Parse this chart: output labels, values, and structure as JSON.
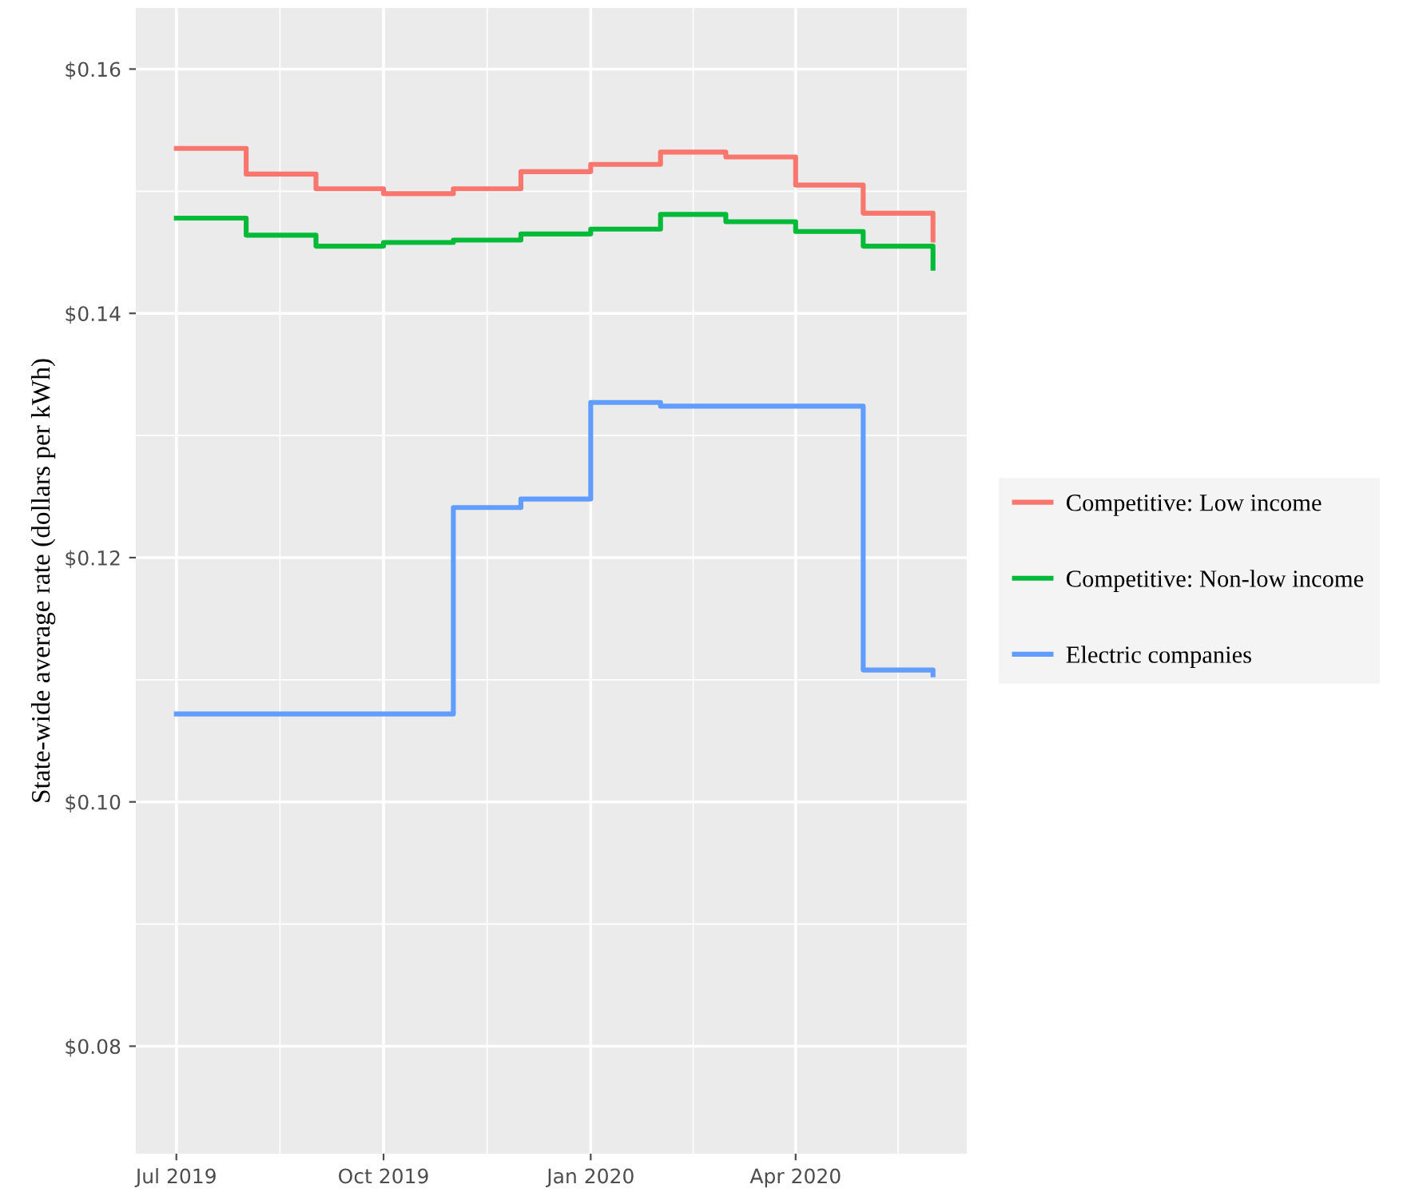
{
  "chart_data": {
    "type": "step",
    "ylabel": "State-wide average rate (dollars per kWh)",
    "x": [
      "2019-07-01",
      "2019-08-01",
      "2019-09-01",
      "2019-10-01",
      "2019-11-01",
      "2019-12-01",
      "2020-01-01",
      "2020-02-01",
      "2020-03-01",
      "2020-04-01",
      "2020-05-01",
      "2020-06-01"
    ],
    "series": [
      {
        "name": "Competitive: Low income",
        "color": "#f8766d",
        "values": [
          0.1535,
          0.1514,
          0.1502,
          0.1498,
          0.1502,
          0.1516,
          0.1522,
          0.1532,
          0.1528,
          0.1505,
          0.1482,
          0.146
        ]
      },
      {
        "name": "Competitive: Non-low income",
        "color": "#00ba38",
        "values": [
          0.1478,
          0.1464,
          0.1455,
          0.1458,
          0.146,
          0.1465,
          0.1469,
          0.1481,
          0.1475,
          0.1467,
          0.1455,
          0.1437
        ]
      },
      {
        "name": "Electric companies",
        "color": "#619cff",
        "values": [
          0.1072,
          0.1072,
          0.1072,
          0.1072,
          0.1241,
          0.1248,
          0.1327,
          0.1324,
          0.1324,
          0.1324,
          0.1108,
          0.1104
        ]
      }
    ],
    "xlim": [
      "2019-06-13",
      "2020-06-16"
    ],
    "xticks": [
      {
        "value": "2019-07-01",
        "label": "Jul 2019"
      },
      {
        "value": "2019-10-01",
        "label": "Oct 2019"
      },
      {
        "value": "2020-01-01",
        "label": "Jan 2020"
      },
      {
        "value": "2020-04-01",
        "label": "Apr 2020"
      }
    ],
    "ylim": [
      0.0712,
      0.165
    ],
    "yticks": [
      {
        "value": 0.08,
        "label": "$0.08"
      },
      {
        "value": 0.1,
        "label": "$0.10"
      },
      {
        "value": 0.12,
        "label": "$0.12"
      },
      {
        "value": 0.14,
        "label": "$0.14"
      },
      {
        "value": 0.16,
        "label": "$0.16"
      }
    ],
    "grid": true,
    "legend": "right"
  }
}
